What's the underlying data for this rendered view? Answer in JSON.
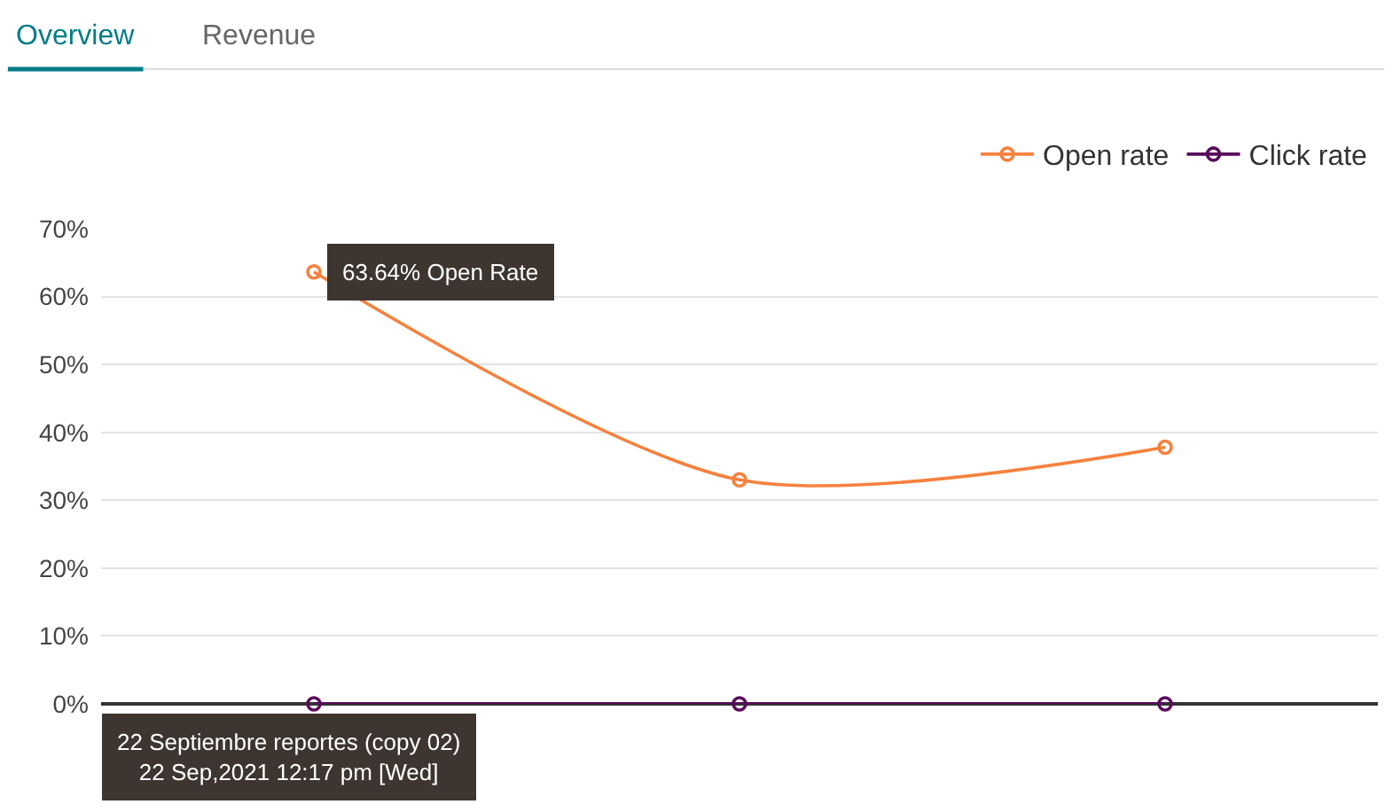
{
  "chart_data": {
    "type": "line",
    "categories": [
      null,
      null,
      null
    ],
    "series": [
      {
        "name": "Open rate",
        "color": "#f7813e",
        "values": [
          63.64,
          33,
          37.8
        ]
      },
      {
        "name": "Click rate",
        "color": "#5a0b5c",
        "values": [
          0,
          0,
          0
        ]
      }
    ],
    "ylim": [
      0,
      70
    ],
    "yticks": [
      {
        "value": 0,
        "label": "0%"
      },
      {
        "value": 10,
        "label": "10%"
      },
      {
        "value": 20,
        "label": "20%"
      },
      {
        "value": 30,
        "label": "30%"
      },
      {
        "value": 40,
        "label": "40%"
      },
      {
        "value": 50,
        "label": "50%"
      },
      {
        "value": 60,
        "label": "60%"
      },
      {
        "value": 70,
        "label": "70%"
      }
    ],
    "grid": "y",
    "legend": "top right",
    "marker": "circle",
    "line_style": "solid",
    "annotations": [
      "Overview",
      "Revenue",
      "63.64% Open Rate",
      "22 Septiembre reportes (copy 02)\n22 Sep,2021 12:17 pm [Wed]"
    ]
  }
}
